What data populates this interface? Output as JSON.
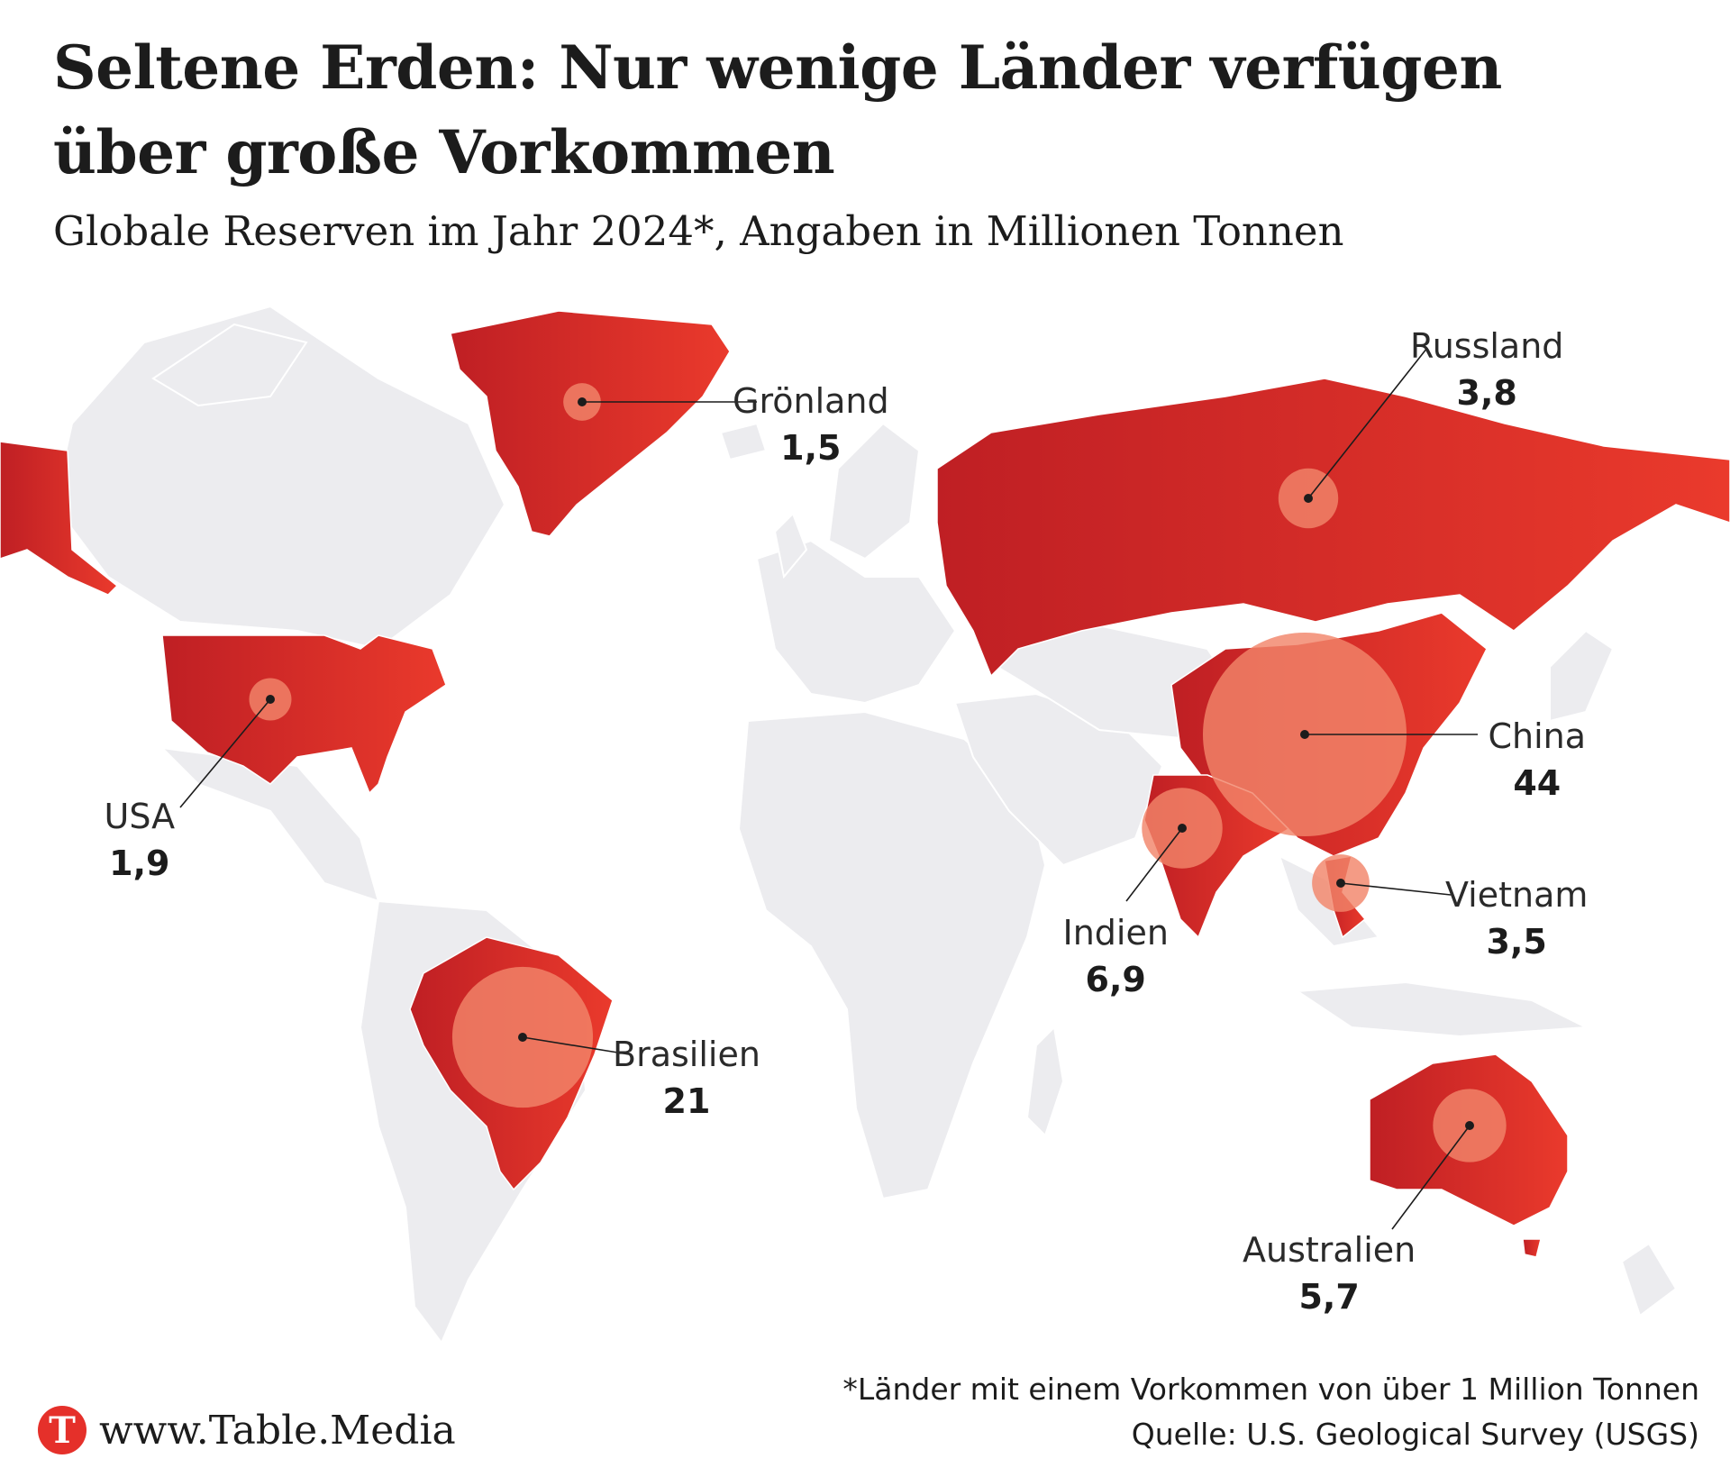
{
  "title": "Seltene Erden: Nur wenige Länder verfügen\nüber große Vorkommen",
  "subtitle": "Globale Reserven im Jahr 2024*, Angaben in Millionen Tonnen",
  "colors": {
    "highlight": "#d42a25",
    "bubble": "#f2856a",
    "land": "#ececef",
    "border": "#ffffff"
  },
  "countries": [
    {
      "id": "gronland",
      "name": "Grönland",
      "value": "1,5",
      "reserve": 1.5
    },
    {
      "id": "russland",
      "name": "Russland",
      "value": "3,8",
      "reserve": 3.8
    },
    {
      "id": "usa",
      "name": "USA",
      "value": "1,9",
      "reserve": 1.9
    },
    {
      "id": "china",
      "name": "China",
      "value": "44",
      "reserve": 44
    },
    {
      "id": "indien",
      "name": "Indien",
      "value": "6,9",
      "reserve": 6.9
    },
    {
      "id": "vietnam",
      "name": "Vietnam",
      "value": "3,5",
      "reserve": 3.5
    },
    {
      "id": "brasilien",
      "name": "Brasilien",
      "value": "21",
      "reserve": 21
    },
    {
      "id": "australien",
      "name": "Australien",
      "value": "5,7",
      "reserve": 5.7
    }
  ],
  "footnote": {
    "note": "*Länder mit einem Vorkommen von über 1 Million Tonnen",
    "source": "Quelle: U.S. Geological Survey (USGS)"
  },
  "brand": {
    "logo_letter": "T",
    "url": "www.Table.Media"
  }
}
